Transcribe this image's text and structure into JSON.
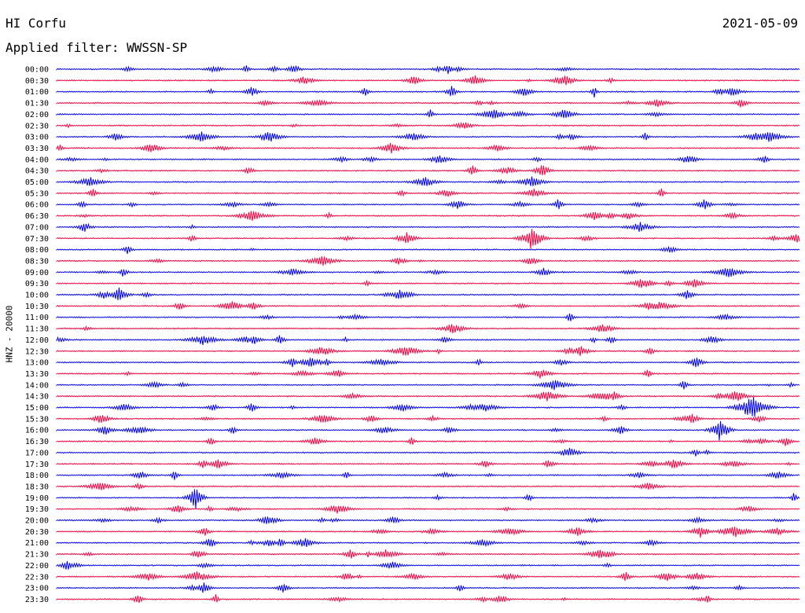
{
  "header": {
    "station": "HI Corfu",
    "date": "2021-05-09",
    "filter": "Applied filter: WWSSN-SP"
  },
  "chart_data": {
    "type": "line",
    "title": "HI Corfu",
    "subtitle": "Applied filter: WWSSN-SP",
    "ylabel": "HNZ - 20000",
    "categories": [
      "00:00",
      "00:30",
      "01:00",
      "01:30",
      "02:00",
      "02:30",
      "03:00",
      "03:30",
      "04:00",
      "04:30",
      "05:00",
      "05:30",
      "06:00",
      "06:30",
      "07:00",
      "07:30",
      "08:00",
      "08:30",
      "09:00",
      "09:30",
      "10:00",
      "10:30",
      "11:00",
      "11:30",
      "12:00",
      "12:30",
      "13:00",
      "13:30",
      "14:00",
      "14:30",
      "15:00",
      "15:30",
      "16:00",
      "16:30",
      "17:00",
      "17:30",
      "18:00",
      "18:30",
      "19:00",
      "19:30",
      "20:00",
      "20:30",
      "21:00",
      "21:30",
      "22:00",
      "22:30",
      "23:00",
      "23:30"
    ],
    "series_colors": [
      "#0000ff",
      "#ff0040"
    ],
    "grid": false
  }
}
